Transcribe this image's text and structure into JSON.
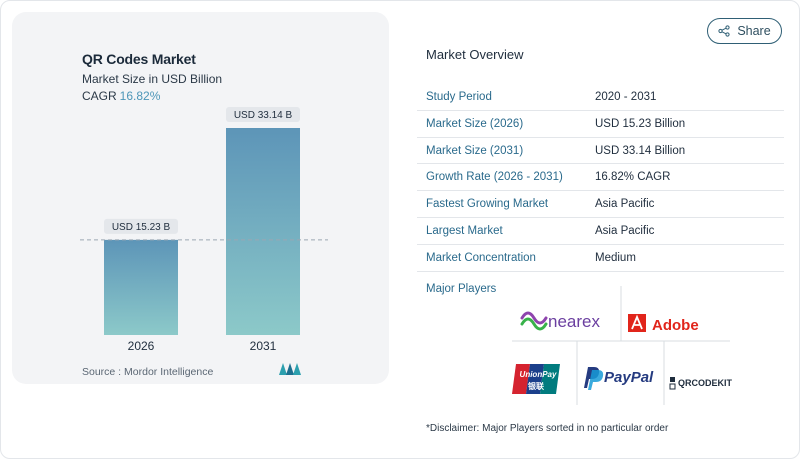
{
  "chart_panel": {
    "title": "QR Codes Market",
    "subtitle": "Market Size in USD Billion",
    "cagr_label": "CAGR",
    "cagr_value": "16.82%",
    "source": "Source :  Mordor Intelligence"
  },
  "chart_data": {
    "type": "bar",
    "categories": [
      "2026",
      "2031"
    ],
    "values": [
      15.23,
      33.14
    ],
    "data_labels": [
      "USD 15.23 B",
      "USD 33.14 B"
    ],
    "reference_line_value": 15.23,
    "grid": false,
    "colors": {
      "bar_top": "#5d95b8",
      "bar_bottom": "#8cc9c9"
    }
  },
  "share": {
    "label": "Share"
  },
  "overview": {
    "title": "Market Overview",
    "rows": [
      {
        "key": "Study Period",
        "value": "2020 - 2031"
      },
      {
        "key": "Market Size (2026)",
        "value": "USD 15.23 Billion"
      },
      {
        "key": "Market Size (2031)",
        "value": "USD 33.14 Billion"
      },
      {
        "key": "Growth Rate (2026 - 2031)",
        "value": "16.82% CAGR"
      },
      {
        "key": "Fastest Growing Market",
        "value": "Asia Pacific"
      },
      {
        "key": "Largest Market",
        "value": "Asia Pacific"
      },
      {
        "key": "Market Concentration",
        "value": "Medium"
      }
    ]
  },
  "players": {
    "title": "Major Players",
    "logos": {
      "nearex": "nearex",
      "adobe": "Adobe",
      "unionpay": "UnionPay",
      "unionpay_cn": "银联",
      "paypal": "PayPal",
      "qrcodekit": "QRCODEKIT"
    }
  },
  "disclaimer": "*Disclaimer: Major Players sorted in no particular order",
  "colors": {
    "accent": "#2a6a8c",
    "cagr": "#4d96b8",
    "adobe_red": "#e1251b",
    "paypal_dark": "#253b80",
    "paypal_light": "#179bd7"
  }
}
